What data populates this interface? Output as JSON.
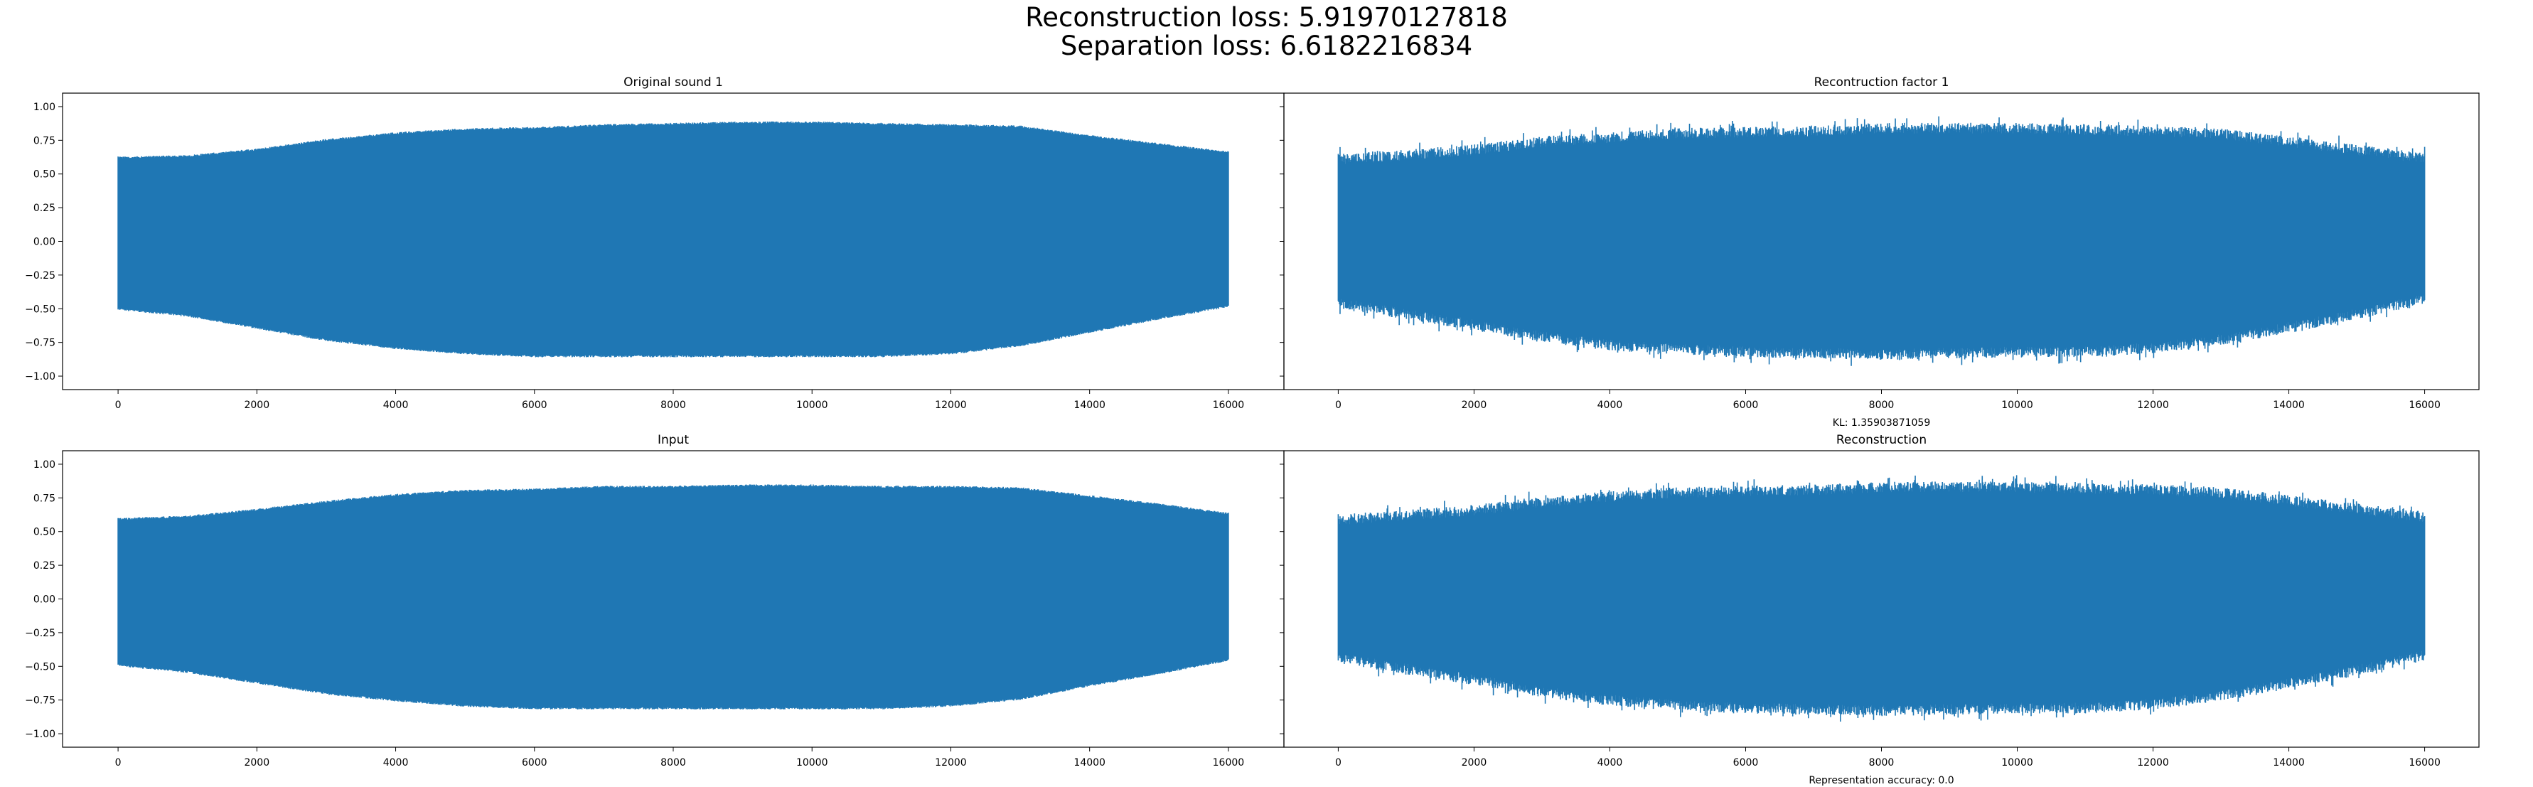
{
  "figure": {
    "suptitle_line1": "Reconstruction loss: 5.91970127818",
    "suptitle_line2": "Separation loss: 6.6182216834",
    "series_color": "#1f77b4"
  },
  "chart_data": [
    {
      "type": "line",
      "title": "Original sound 1",
      "xlabel": "",
      "ylabel": "",
      "xlim": [
        -800,
        16800
      ],
      "ylim": [
        -1.1,
        1.1
      ],
      "xticks": [
        0,
        2000,
        4000,
        6000,
        8000,
        10000,
        12000,
        14000,
        16000
      ],
      "yticks": [
        -1.0,
        -0.75,
        -0.5,
        -0.25,
        0.0,
        0.25,
        0.5,
        0.75,
        1.0
      ],
      "ytick_labels": [
        "−1.00",
        "−0.75",
        "−0.50",
        "−0.25",
        "0.00",
        "0.25",
        "0.50",
        "0.75",
        "1.00"
      ],
      "grid": false,
      "n_samples": 16000,
      "envelope": {
        "x": [
          0,
          1000,
          2000,
          3000,
          4000,
          5000,
          6000,
          7000,
          8000,
          9000,
          10000,
          11000,
          12000,
          13000,
          14000,
          15000,
          16000
        ],
        "upper": [
          0.63,
          0.64,
          0.69,
          0.76,
          0.81,
          0.84,
          0.85,
          0.87,
          0.88,
          0.89,
          0.89,
          0.88,
          0.87,
          0.86,
          0.79,
          0.73,
          0.67
        ],
        "lower": [
          -0.51,
          -0.56,
          -0.65,
          -0.74,
          -0.8,
          -0.84,
          -0.86,
          -0.86,
          -0.86,
          -0.86,
          -0.86,
          -0.86,
          -0.84,
          -0.78,
          -0.68,
          -0.58,
          -0.49
        ]
      }
    },
    {
      "type": "line",
      "title": "Recontruction factor 1",
      "xlabel": "KL: 1.35903871059",
      "ylabel": "",
      "xlim": [
        -800,
        16800
      ],
      "ylim": [
        -1.1,
        1.1
      ],
      "xticks": [
        0,
        2000,
        4000,
        6000,
        8000,
        10000,
        12000,
        14000,
        16000
      ],
      "yticks": [
        -1.0,
        -0.75,
        -0.5,
        -0.25,
        0.0,
        0.25,
        0.5,
        0.75,
        1.0
      ],
      "grid": false,
      "n_samples": 16000,
      "envelope": {
        "x": [
          0,
          1000,
          2000,
          3000,
          4000,
          5000,
          6000,
          7000,
          8000,
          9000,
          10000,
          11000,
          12000,
          13000,
          14000,
          15000,
          16000
        ],
        "upper": [
          0.65,
          0.68,
          0.72,
          0.78,
          0.81,
          0.84,
          0.85,
          0.86,
          0.88,
          0.88,
          0.88,
          0.87,
          0.86,
          0.84,
          0.78,
          0.72,
          0.66
        ],
        "lower": [
          -0.5,
          -0.58,
          -0.66,
          -0.75,
          -0.81,
          -0.84,
          -0.86,
          -0.87,
          -0.88,
          -0.87,
          -0.86,
          -0.86,
          -0.83,
          -0.77,
          -0.68,
          -0.58,
          -0.47
        ]
      }
    },
    {
      "type": "line",
      "title": "Input",
      "xlabel": "",
      "ylabel": "",
      "xlim": [
        -800,
        16800
      ],
      "ylim": [
        -1.1,
        1.1
      ],
      "xticks": [
        0,
        2000,
        4000,
        6000,
        8000,
        10000,
        12000,
        14000,
        16000
      ],
      "yticks": [
        -1.0,
        -0.75,
        -0.5,
        -0.25,
        0.0,
        0.25,
        0.5,
        0.75,
        1.0
      ],
      "ytick_labels": [
        "−1.00",
        "−0.75",
        "−0.50",
        "−0.25",
        "0.00",
        "0.25",
        "0.50",
        "0.75",
        "1.00"
      ],
      "grid": false,
      "n_samples": 16000,
      "envelope": {
        "x": [
          0,
          1000,
          2000,
          3000,
          4000,
          5000,
          6000,
          7000,
          8000,
          9000,
          10000,
          11000,
          12000,
          13000,
          14000,
          15000,
          16000
        ],
        "upper": [
          0.6,
          0.62,
          0.67,
          0.73,
          0.78,
          0.81,
          0.82,
          0.84,
          0.84,
          0.85,
          0.85,
          0.84,
          0.84,
          0.83,
          0.77,
          0.71,
          0.64
        ],
        "lower": [
          -0.5,
          -0.55,
          -0.63,
          -0.71,
          -0.76,
          -0.8,
          -0.82,
          -0.82,
          -0.82,
          -0.82,
          -0.82,
          -0.82,
          -0.8,
          -0.75,
          -0.65,
          -0.56,
          -0.46
        ]
      }
    },
    {
      "type": "line",
      "title": "Reconstruction",
      "xlabel": "Representation accuracy: 0.0",
      "ylabel": "",
      "xlim": [
        -800,
        16800
      ],
      "ylim": [
        -1.1,
        1.1
      ],
      "xticks": [
        0,
        2000,
        4000,
        6000,
        8000,
        10000,
        12000,
        14000,
        16000
      ],
      "yticks": [
        -1.0,
        -0.75,
        -0.5,
        -0.25,
        0.0,
        0.25,
        0.5,
        0.75,
        1.0
      ],
      "grid": false,
      "n_samples": 16000,
      "envelope": {
        "x": [
          0,
          1000,
          2000,
          3000,
          4000,
          5000,
          6000,
          7000,
          8000,
          9000,
          10000,
          11000,
          12000,
          13000,
          14000,
          15000,
          16000
        ],
        "upper": [
          0.63,
          0.66,
          0.7,
          0.76,
          0.8,
          0.83,
          0.84,
          0.85,
          0.87,
          0.87,
          0.87,
          0.86,
          0.85,
          0.83,
          0.77,
          0.71,
          0.65
        ],
        "lower": [
          -0.48,
          -0.56,
          -0.64,
          -0.73,
          -0.79,
          -0.83,
          -0.85,
          -0.86,
          -0.87,
          -0.86,
          -0.85,
          -0.85,
          -0.82,
          -0.76,
          -0.67,
          -0.57,
          -0.46
        ]
      }
    }
  ]
}
